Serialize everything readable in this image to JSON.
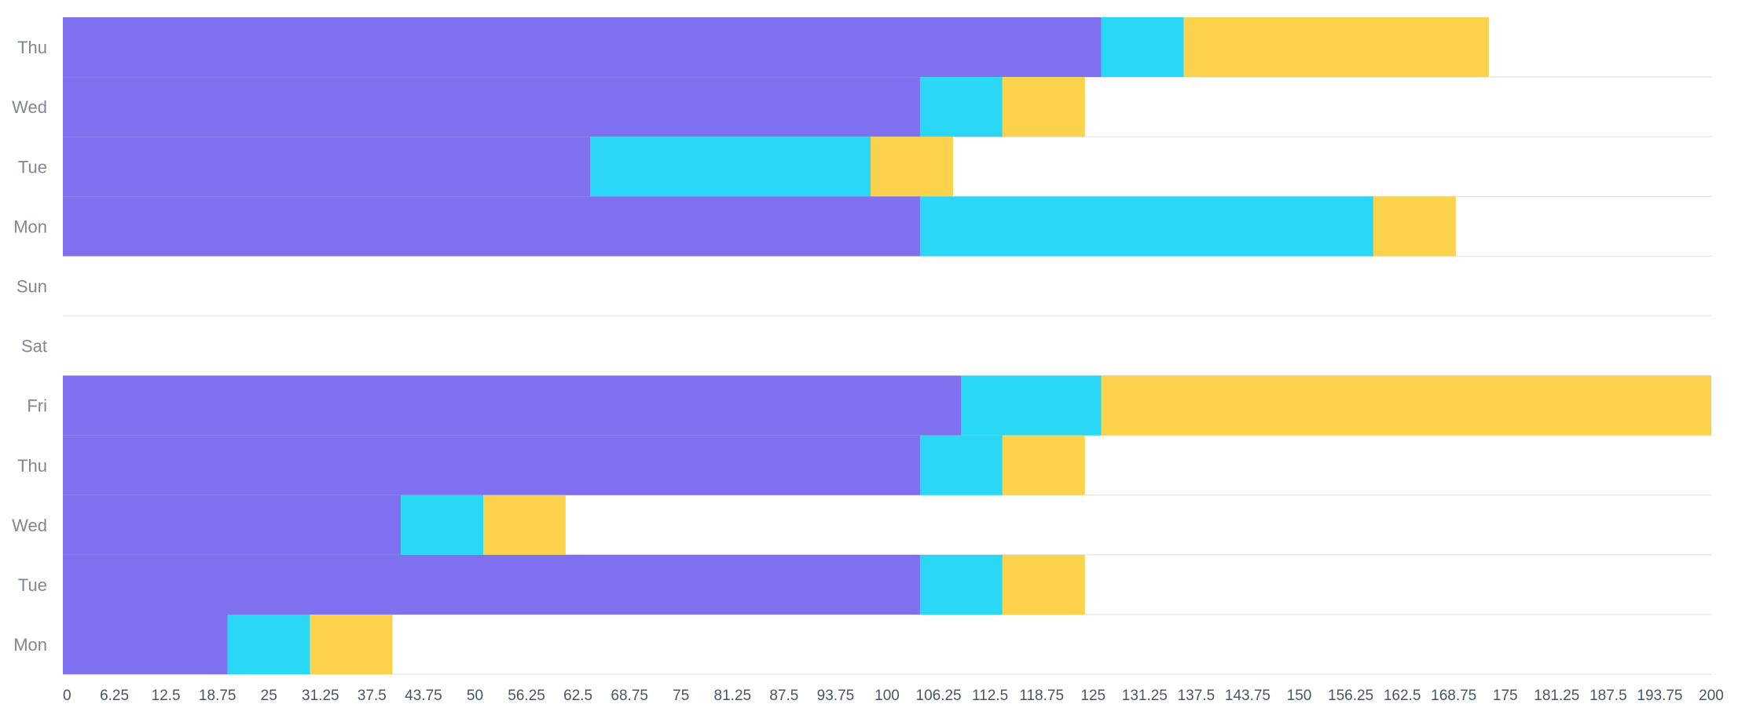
{
  "chart_data": {
    "type": "bar",
    "orientation": "horizontal",
    "stacked": true,
    "categories": [
      "Thu",
      "Wed",
      "Tue",
      "Mon",
      "Sun",
      "Sat",
      "Fri",
      "Thu",
      "Wed",
      "Tue",
      "Mon"
    ],
    "series": [
      {
        "color": "#7f70ef",
        "values": [
          126,
          104,
          64,
          104,
          0,
          0,
          109,
          104,
          41,
          104,
          20
        ]
      },
      {
        "color": "#2ad8f5",
        "values": [
          10,
          10,
          34,
          55,
          0,
          0,
          17,
          10,
          10,
          10,
          10
        ]
      },
      {
        "color": "#fad24b",
        "values": [
          37,
          10,
          10,
          10,
          0,
          0,
          74,
          10,
          10,
          10,
          10
        ]
      }
    ],
    "xlim": [
      0,
      200
    ],
    "xticks": [
      0,
      6.25,
      12.5,
      18.75,
      25,
      31.25,
      37.5,
      43.75,
      50,
      56.25,
      62.5,
      68.75,
      75,
      81.25,
      87.5,
      93.75,
      100,
      106.25,
      112.5,
      118.75,
      125,
      131.25,
      137.5,
      143.75,
      150,
      156.25,
      162.5,
      168.75,
      175,
      181.25,
      187.5,
      193.75,
      200
    ],
    "grid": "horizontal",
    "legend": "none",
    "title": "",
    "xlabel": "",
    "ylabel": ""
  }
}
